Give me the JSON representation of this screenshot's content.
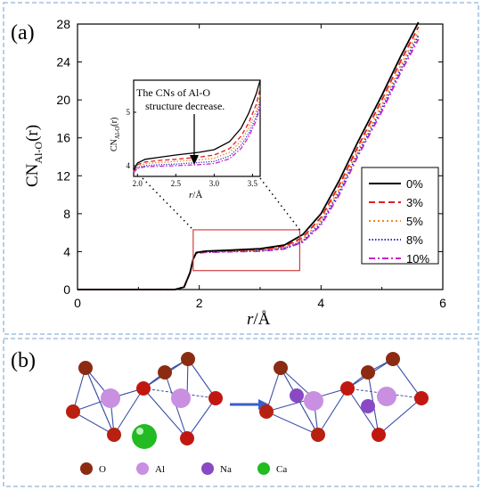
{
  "panel_a": {
    "label": "(a)",
    "ylabel_main": "CN",
    "ylabel_sub": "Al-O",
    "ylabel_tail": "(r)",
    "xlabel_italic": "r",
    "xlabel_unit": "/Å",
    "inset_annotation_line1": "The CNs of Al-O",
    "inset_annotation_line2": "structure decrease.",
    "inset_ylabel_main": "CN",
    "inset_ylabel_sub": "Al-O",
    "inset_ylabel_tail": "(r)",
    "inset_xlabel_italic": "r",
    "inset_xlabel_unit": "/Å"
  },
  "panel_b": {
    "label": "(b)",
    "legend": [
      {
        "label": "O",
        "color": "#8b2c12"
      },
      {
        "label": "Al",
        "color": "#c98fe0"
      },
      {
        "label": "Na",
        "color": "#8a48c4"
      },
      {
        "label": "Ca",
        "color": "#22bb22"
      }
    ]
  },
  "colors": {
    "frame": "#8fb3d9",
    "arrow": "#3a5fc8",
    "inset_box": "#d04040"
  },
  "chart_data": {
    "type": "line",
    "xlim": [
      0,
      6
    ],
    "ylim": [
      0,
      28
    ],
    "xticks": [
      0,
      2,
      4,
      6
    ],
    "yticks": [
      0,
      4,
      8,
      12,
      16,
      20,
      24,
      28
    ],
    "legend_position": "right",
    "highlight_box": {
      "x": [
        1.9,
        3.65
      ],
      "y": [
        2.0,
        6.3
      ]
    },
    "series": [
      {
        "name": "0%",
        "color": "#000000",
        "dash": "",
        "x": [
          0,
          1.6,
          1.75,
          1.85,
          1.9,
          1.95,
          2.1,
          2.5,
          3.0,
          3.4,
          3.7,
          4.0,
          4.3,
          4.6,
          5.0,
          5.3,
          5.6
        ],
        "y": [
          0,
          0,
          0.25,
          1.8,
          3.2,
          3.9,
          4.05,
          4.15,
          4.3,
          4.7,
          5.8,
          8.0,
          11.5,
          15.5,
          20.5,
          24.5,
          28.2
        ]
      },
      {
        "name": "3%",
        "color": "#e02020",
        "dash": "7 4",
        "x": [
          0,
          1.6,
          1.75,
          1.85,
          1.9,
          1.95,
          2.1,
          2.5,
          3.0,
          3.4,
          3.7,
          4.0,
          4.3,
          4.6,
          5.0,
          5.3,
          5.6
        ],
        "y": [
          0,
          0,
          0.25,
          1.8,
          3.2,
          3.88,
          4.02,
          4.1,
          4.22,
          4.55,
          5.5,
          7.6,
          11.0,
          15.0,
          20.0,
          24.0,
          27.7
        ]
      },
      {
        "name": "5%",
        "color": "#f08a24",
        "dash": "2 3",
        "x": [
          0,
          1.6,
          1.75,
          1.85,
          1.9,
          1.95,
          2.1,
          2.5,
          3.0,
          3.4,
          3.7,
          4.0,
          4.3,
          4.6,
          5.0,
          5.3,
          5.6
        ],
        "y": [
          0,
          0,
          0.25,
          1.8,
          3.2,
          3.86,
          3.99,
          4.06,
          4.16,
          4.45,
          5.3,
          7.3,
          10.6,
          14.6,
          19.5,
          23.5,
          27.2
        ]
      },
      {
        "name": "8%",
        "color": "#2b2bd0",
        "dash": "1.5 2",
        "x": [
          0,
          1.6,
          1.75,
          1.85,
          1.9,
          1.95,
          2.1,
          2.5,
          3.0,
          3.4,
          3.7,
          4.0,
          4.3,
          4.6,
          5.0,
          5.3,
          5.6
        ],
        "y": [
          0,
          0,
          0.25,
          1.8,
          3.2,
          3.84,
          3.96,
          4.02,
          4.1,
          4.35,
          5.1,
          7.0,
          10.3,
          14.3,
          19.1,
          23.1,
          26.8
        ]
      },
      {
        "name": "10%",
        "color": "#cc22cc",
        "dash": "7 3 2 3",
        "x": [
          0,
          1.6,
          1.75,
          1.85,
          1.9,
          1.95,
          2.1,
          2.5,
          3.0,
          3.4,
          3.7,
          4.0,
          4.3,
          4.6,
          5.0,
          5.3,
          5.6
        ],
        "y": [
          0,
          0,
          0.25,
          1.8,
          3.2,
          3.82,
          3.93,
          3.98,
          4.05,
          4.28,
          5.0,
          6.8,
          10.0,
          14.0,
          18.8,
          22.8,
          26.4
        ]
      }
    ],
    "inset": {
      "xlim": [
        1.95,
        3.6
      ],
      "ylim": [
        3.8,
        5.6
      ],
      "xticks": [
        2.0,
        2.5,
        3.0,
        3.5
      ],
      "yticks": [
        4,
        5
      ],
      "series": [
        {
          "name": "0%",
          "color": "#000000",
          "dash": "",
          "x": [
            1.95,
            2.0,
            2.1,
            2.3,
            2.5,
            2.8,
            3.0,
            3.2,
            3.35,
            3.45,
            3.55,
            3.6
          ],
          "y": [
            3.92,
            4.05,
            4.12,
            4.16,
            4.2,
            4.25,
            4.3,
            4.45,
            4.7,
            4.98,
            5.35,
            5.6
          ]
        },
        {
          "name": "3%",
          "color": "#e02020",
          "dash": "5 3",
          "x": [
            1.95,
            2.0,
            2.1,
            2.3,
            2.5,
            2.8,
            3.0,
            3.2,
            3.35,
            3.45,
            3.55,
            3.6
          ],
          "y": [
            3.9,
            4.02,
            4.07,
            4.1,
            4.12,
            4.16,
            4.2,
            4.32,
            4.55,
            4.8,
            5.15,
            5.45
          ]
        },
        {
          "name": "5%",
          "color": "#f08a24",
          "dash": "1.5 2",
          "x": [
            1.95,
            2.0,
            2.1,
            2.3,
            2.5,
            2.8,
            3.0,
            3.2,
            3.35,
            3.45,
            3.55,
            3.6
          ],
          "y": [
            3.89,
            4.0,
            4.04,
            4.06,
            4.08,
            4.11,
            4.14,
            4.25,
            4.46,
            4.7,
            5.03,
            5.32
          ]
        },
        {
          "name": "8%",
          "color": "#2b2bd0",
          "dash": "1.2 1.6",
          "x": [
            1.95,
            2.0,
            2.1,
            2.3,
            2.5,
            2.8,
            3.0,
            3.2,
            3.35,
            3.45,
            3.55,
            3.6
          ],
          "y": [
            3.88,
            3.97,
            4.0,
            4.02,
            4.03,
            4.06,
            4.08,
            4.18,
            4.38,
            4.6,
            4.92,
            5.2
          ]
        },
        {
          "name": "10%",
          "color": "#cc22cc",
          "dash": "5 2 1.5 2",
          "x": [
            1.95,
            2.0,
            2.1,
            2.3,
            2.5,
            2.8,
            3.0,
            3.2,
            3.35,
            3.45,
            3.55,
            3.6
          ],
          "y": [
            3.87,
            3.95,
            3.98,
            3.99,
            4.0,
            4.02,
            4.04,
            4.13,
            4.32,
            4.54,
            4.85,
            5.12
          ]
        }
      ]
    }
  }
}
